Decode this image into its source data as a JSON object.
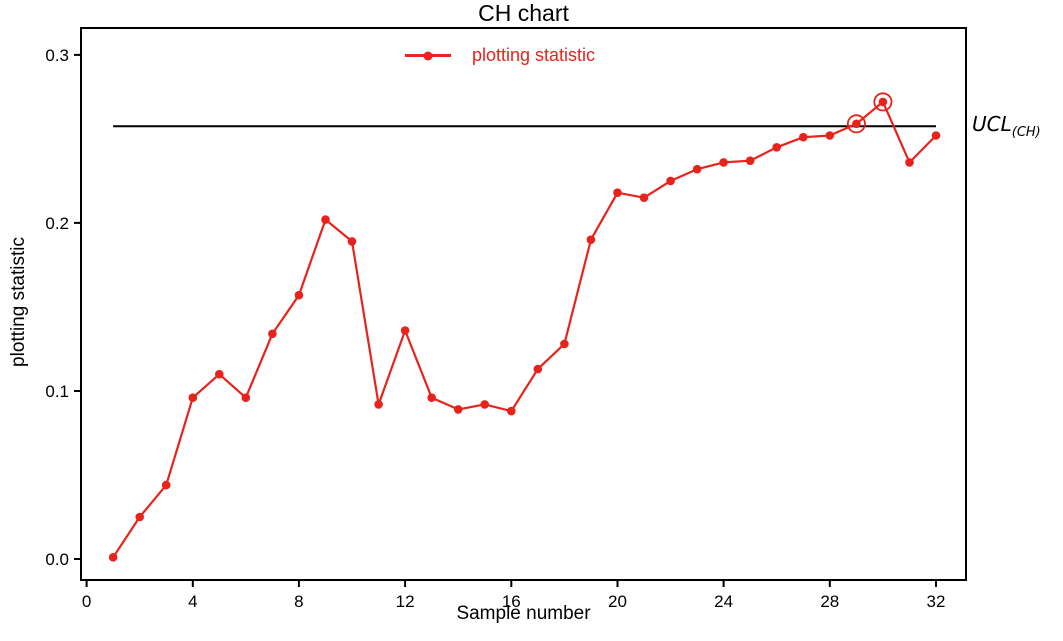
{
  "colors": {
    "series": "#e8231c",
    "axis": "#000000",
    "ucl_line": "#000000",
    "background": "#ffffff"
  },
  "chart_data": {
    "type": "line",
    "title": "CH chart",
    "xlabel": "Sample number",
    "ylabel": "plotting statistic",
    "series_name": "plotting statistic",
    "legend_position": "top-center",
    "grid": false,
    "x": [
      1,
      2,
      3,
      4,
      5,
      6,
      7,
      8,
      9,
      10,
      11,
      12,
      13,
      14,
      15,
      16,
      17,
      18,
      19,
      20,
      21,
      22,
      23,
      24,
      25,
      26,
      27,
      28,
      29,
      30,
      31,
      32
    ],
    "y": [
      0.001,
      0.025,
      0.044,
      0.096,
      0.11,
      0.096,
      0.134,
      0.157,
      0.202,
      0.189,
      0.092,
      0.136,
      0.096,
      0.089,
      0.092,
      0.088,
      0.113,
      0.128,
      0.19,
      0.218,
      0.215,
      0.225,
      0.232,
      0.236,
      0.237,
      0.245,
      0.251,
      0.252,
      0.259,
      0.272,
      0.236,
      0.252
    ],
    "circled_points": [
      29,
      30
    ],
    "ucl": {
      "value": 0.2575,
      "label_main": "UCL",
      "label_sub": "(CH)"
    },
    "x_ticks": [
      0,
      4,
      8,
      12,
      16,
      20,
      24,
      28,
      32
    ],
    "y_ticks": [
      0.0,
      0.1,
      0.2,
      0.3
    ],
    "xlim": [
      -0.21,
      33.13
    ],
    "ylim": [
      -0.0125,
      0.316
    ]
  }
}
